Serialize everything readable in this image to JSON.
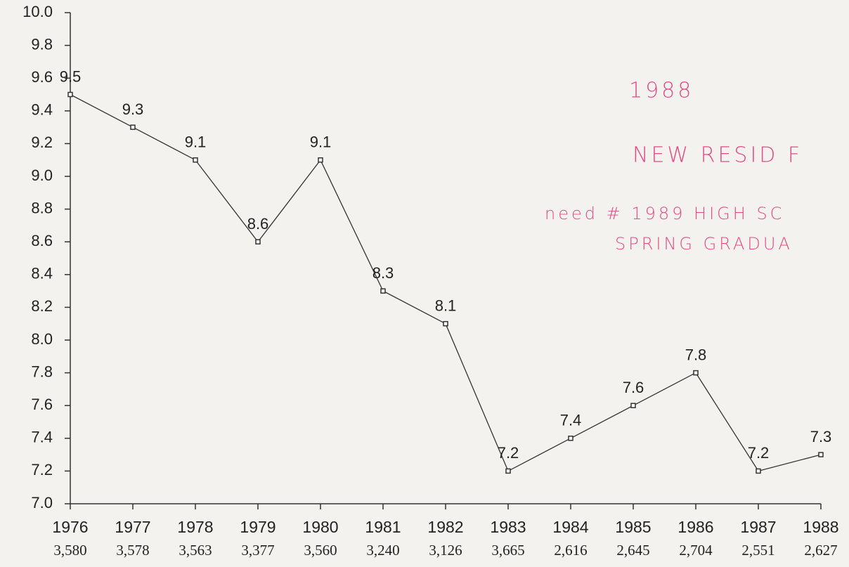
{
  "chart_data": {
    "type": "line",
    "categories": [
      "1976",
      "1977",
      "1978",
      "1979",
      "1980",
      "1981",
      "1982",
      "1983",
      "1984",
      "1985",
      "1986",
      "1987",
      "1988"
    ],
    "x_sublabels": [
      "3,580",
      "3,578",
      "3,563",
      "3,377",
      "3,560",
      "3,240",
      "3,126",
      "3,665",
      "2,616",
      "2,645",
      "2,704",
      "2,551",
      "2,627"
    ],
    "series": [
      {
        "name": "rate",
        "color": "#333333",
        "values": [
          9.5,
          9.3,
          9.1,
          8.6,
          9.1,
          8.3,
          8.1,
          7.2,
          7.4,
          7.6,
          7.8,
          7.2,
          7.3
        ]
      }
    ],
    "ylim": [
      7.0,
      10.0
    ],
    "yticks": [
      {
        "value": 7.0,
        "label": "7.0"
      },
      7.2,
      7.4,
      7.6,
      7.8,
      {
        "value": 8.0,
        "label": "8.0"
      },
      8.2,
      8.4,
      8.6,
      8.8,
      {
        "value": 9.0,
        "label": "9.0"
      },
      9.2,
      9.4,
      9.6,
      9.8,
      {
        "value": 10.0,
        "label": "10.0"
      }
    ],
    "annotations": [
      "1988",
      "NEW RESID F",
      "need # 1989 HIGH SC",
      "SPRING GRADUA"
    ]
  }
}
